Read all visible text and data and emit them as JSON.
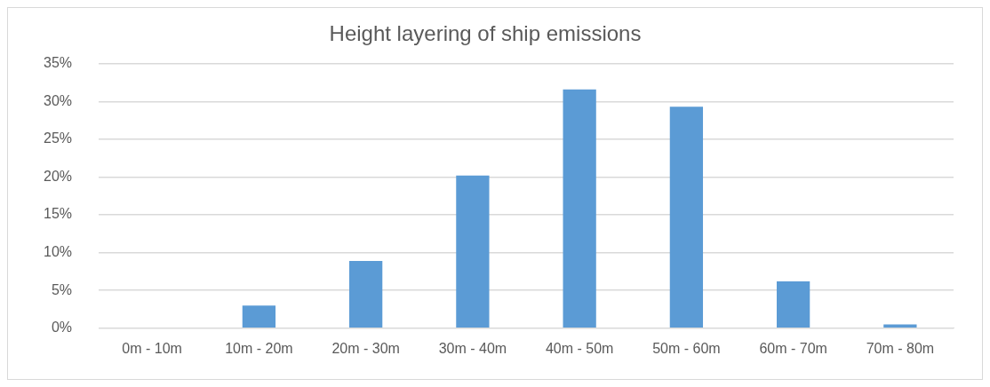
{
  "chart_data": {
    "type": "bar",
    "title": "Height layering of ship emissions",
    "categories": [
      "0m - 10m",
      "10m - 20m",
      "20m - 30m",
      "30m - 40m",
      "40m - 50m",
      "50m - 60m",
      "60m - 70m",
      "70m - 80m"
    ],
    "values": [
      0,
      3.0,
      8.9,
      20.2,
      31.6,
      29.3,
      6.2,
      0.5
    ],
    "color": "#5b9bd5",
    "ylim": [
      0,
      35
    ],
    "yticks": [
      {
        "value": 0,
        "label": "0%"
      },
      {
        "value": 5,
        "label": "5%"
      },
      {
        "value": 10,
        "label": "10%"
      },
      {
        "value": 15,
        "label": "15%"
      },
      {
        "value": 20,
        "label": "20%"
      },
      {
        "value": 25,
        "label": "25%"
      },
      {
        "value": 30,
        "label": "30%"
      },
      {
        "value": 35,
        "label": "35%"
      }
    ],
    "grid": "y",
    "legend": false
  }
}
